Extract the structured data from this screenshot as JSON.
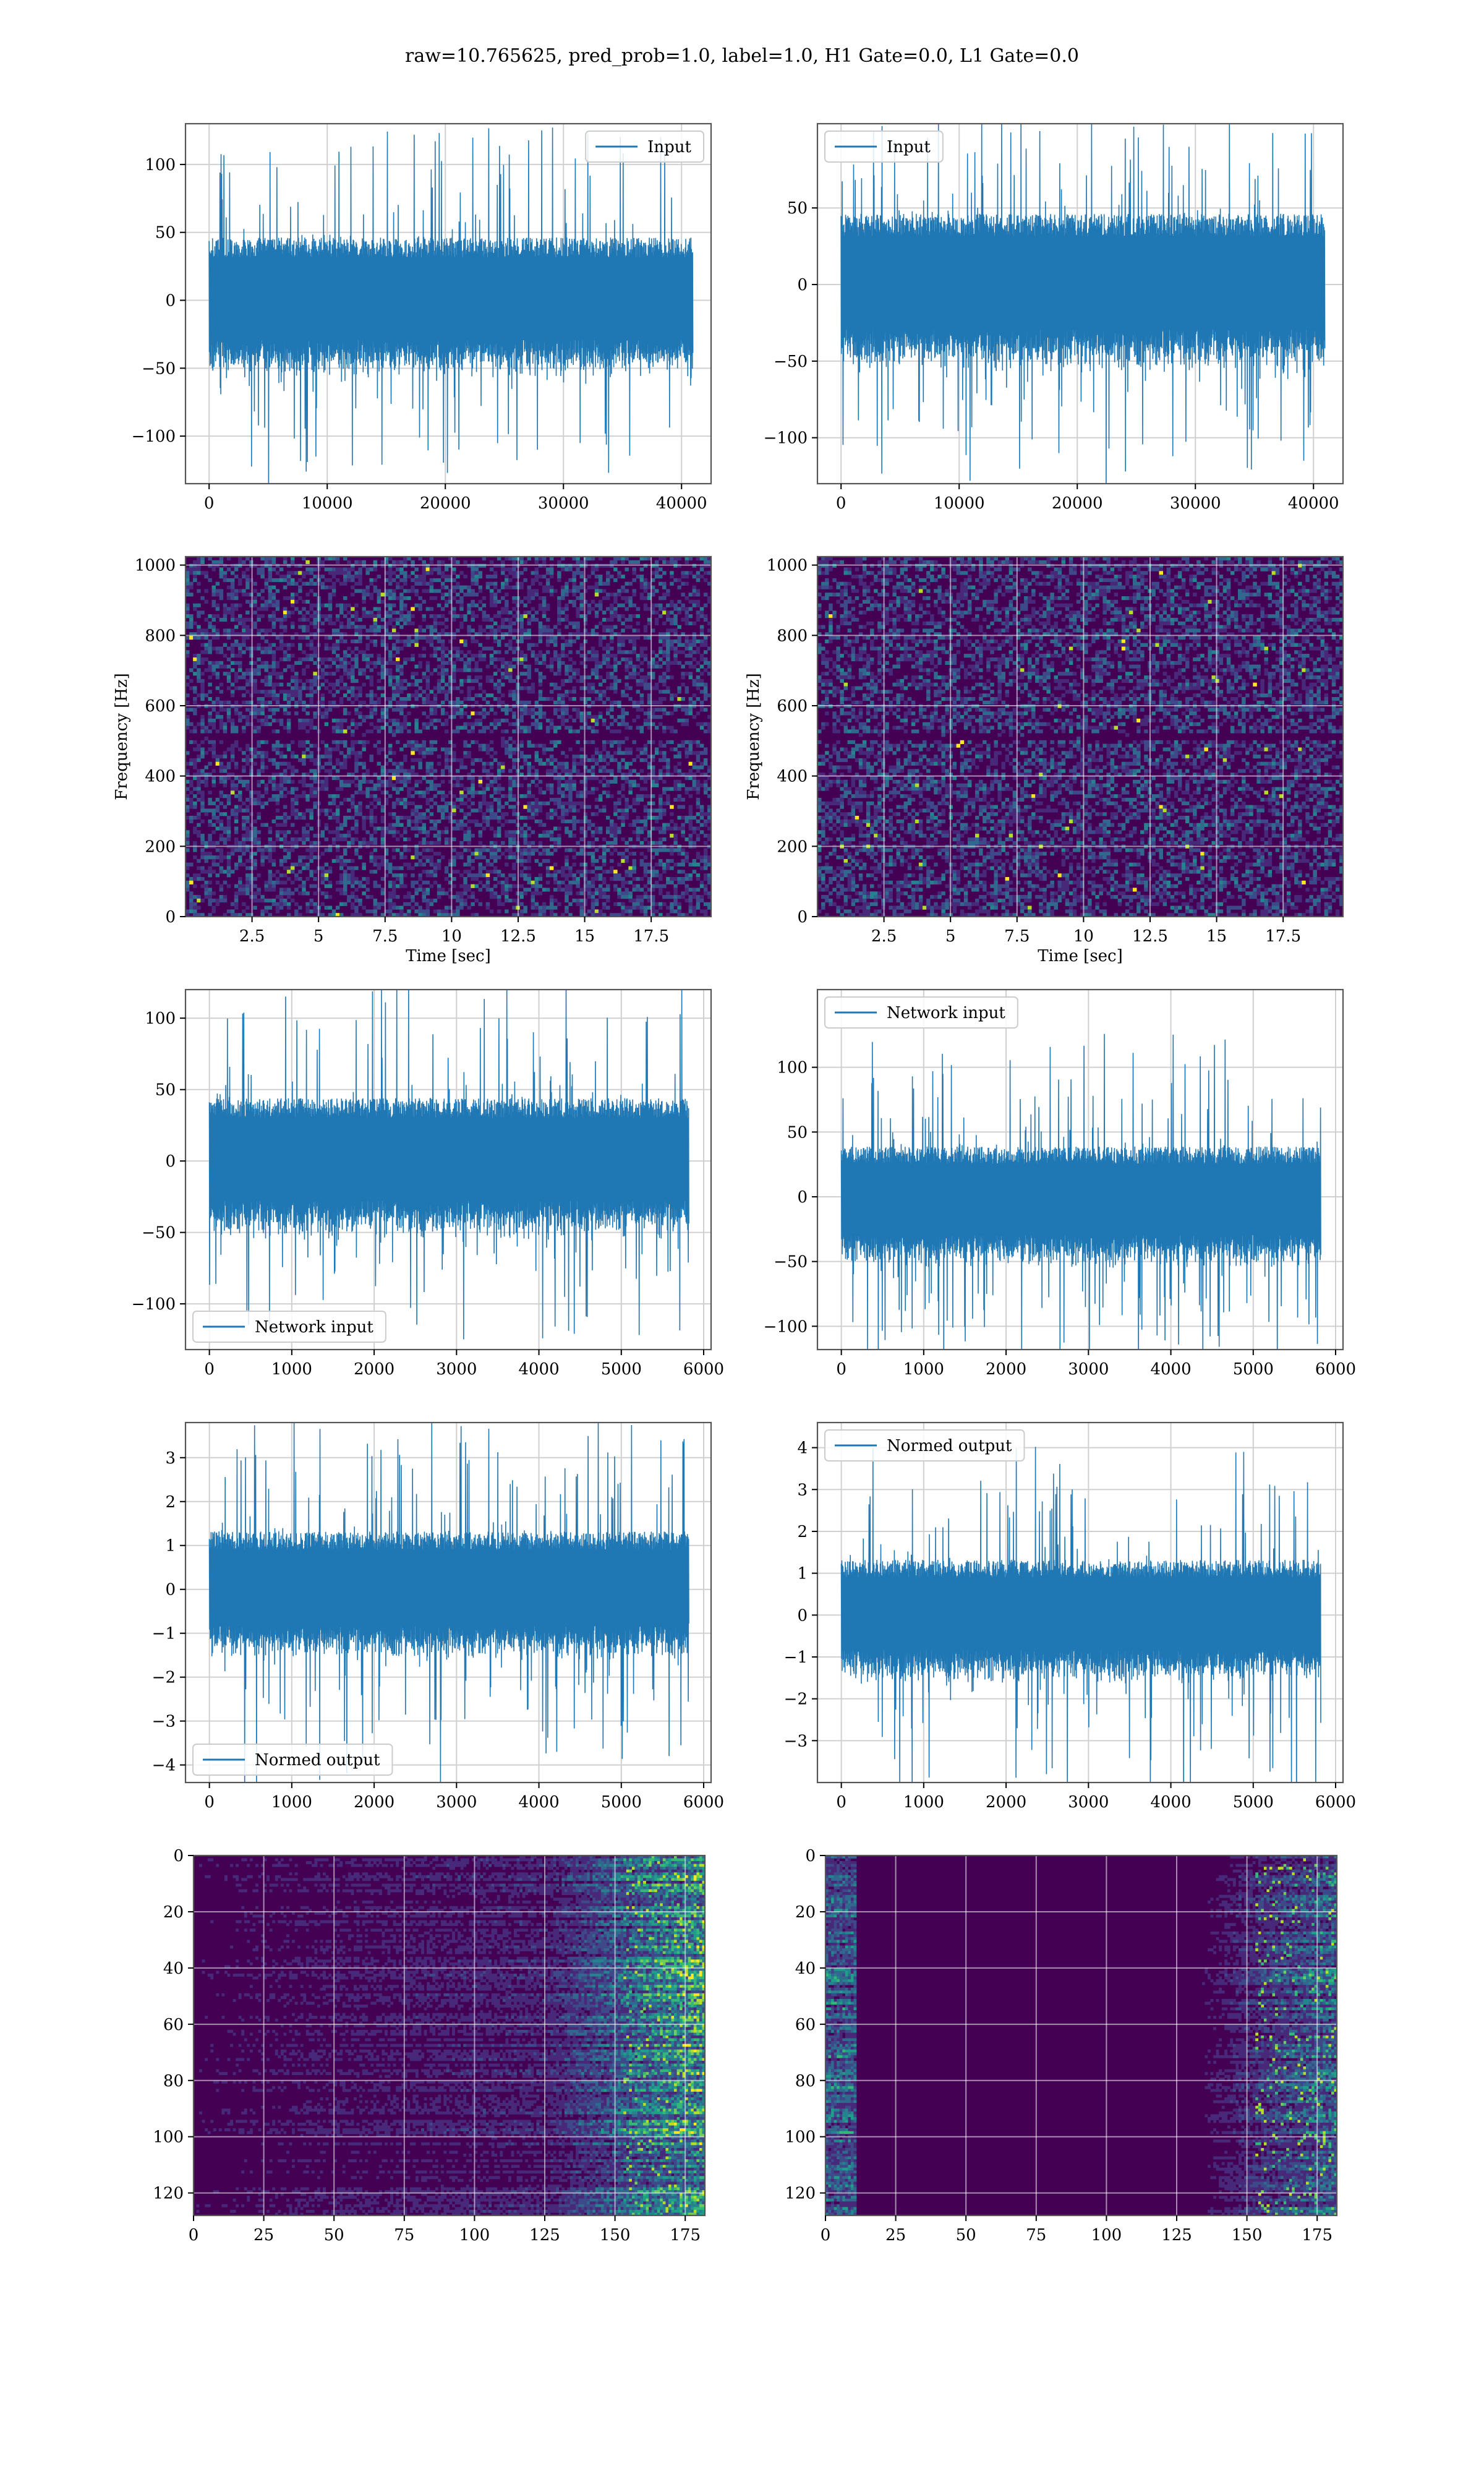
{
  "title": "raw=10.765625, pred_prob=1.0, label=1.0, H1 Gate=0.0, L1 Gate=0.0",
  "colors": {
    "line": "#1f77b4",
    "grid": "#d0d0d0",
    "frame": "#555555",
    "viridis": [
      "#440154",
      "#482878",
      "#3e4989",
      "#31688e",
      "#26828e",
      "#1f9e89",
      "#35b779",
      "#6ece58",
      "#b5de2b",
      "#fde725"
    ]
  },
  "chart_data": [
    {
      "id": "h1-input",
      "type": "line",
      "x": [
        0,
        40960
      ],
      "xlim": [
        -2000,
        42500
      ],
      "ylim": [
        -135,
        130
      ],
      "yticks": [
        -100,
        -50,
        0,
        50,
        100
      ],
      "xticks": [
        0,
        10000,
        20000,
        30000,
        40000
      ],
      "envelope": {
        "mean": 0,
        "core": 42,
        "peak": 128
      },
      "legend": {
        "label": "Input",
        "loc": "upper right"
      },
      "xlabel": "",
      "ylabel": "",
      "grid": true
    },
    {
      "id": "l1-input",
      "type": "line",
      "x": [
        0,
        40960
      ],
      "xlim": [
        -2000,
        42500
      ],
      "ylim": [
        -130,
        105
      ],
      "yticks": [
        -100,
        -50,
        0,
        50
      ],
      "xticks": [
        0,
        10000,
        20000,
        30000,
        40000
      ],
      "envelope": {
        "mean": 0,
        "core": 42,
        "peak": 118
      },
      "legend": {
        "label": "Input",
        "loc": "upper left"
      },
      "xlabel": "",
      "ylabel": "",
      "grid": true
    },
    {
      "id": "h1-spectrogram",
      "type": "heatmap",
      "xlim": [
        0,
        19.75
      ],
      "ylim": [
        0,
        1024
      ],
      "xticks": [
        2.5,
        5.0,
        7.5,
        10.0,
        12.5,
        15.0,
        17.5
      ],
      "yticks": [
        0,
        200,
        400,
        600,
        800,
        1000
      ],
      "xlabel": "Time [sec]",
      "ylabel": "Frequency [Hz]",
      "grid": true
    },
    {
      "id": "l1-spectrogram",
      "type": "heatmap",
      "xlim": [
        0,
        19.75
      ],
      "ylim": [
        0,
        1024
      ],
      "xticks": [
        2.5,
        5.0,
        7.5,
        10.0,
        12.5,
        15.0,
        17.5
      ],
      "yticks": [
        0,
        200,
        400,
        600,
        800,
        1000
      ],
      "xlabel": "Time [sec]",
      "ylabel": "Frequency [Hz]",
      "grid": true
    },
    {
      "id": "h1-network-input",
      "type": "line",
      "x": [
        0,
        5820
      ],
      "xlim": [
        -290,
        6090
      ],
      "ylim": [
        -132,
        120
      ],
      "yticks": [
        -100,
        -50,
        0,
        50,
        100
      ],
      "xticks": [
        0,
        1000,
        2000,
        3000,
        4000,
        5000,
        6000
      ],
      "envelope": {
        "mean": 0,
        "core": 40,
        "peak": 122
      },
      "legend": {
        "label": "Network input",
        "loc": "lower left"
      },
      "xlabel": "",
      "ylabel": "",
      "grid": true
    },
    {
      "id": "l1-network-input",
      "type": "line",
      "x": [
        0,
        5820
      ],
      "xlim": [
        -290,
        6090
      ],
      "ylim": [
        -118,
        160
      ],
      "yticks": [
        -100,
        -50,
        0,
        50,
        100
      ],
      "xticks": [
        0,
        1000,
        2000,
        3000,
        4000,
        5000,
        6000
      ],
      "envelope": {
        "mean": -3,
        "core": 38,
        "peak": 130
      },
      "legend": {
        "label": "Network input",
        "loc": "upper left"
      },
      "xlabel": "",
      "ylabel": "",
      "grid": true
    },
    {
      "id": "h1-normed-output",
      "type": "line",
      "x": [
        0,
        5820
      ],
      "xlim": [
        -290,
        6090
      ],
      "ylim": [
        -4.4,
        3.8
      ],
      "yticks": [
        -4,
        -3,
        -2,
        -1,
        0,
        1,
        2,
        3
      ],
      "xticks": [
        0,
        1000,
        2000,
        3000,
        4000,
        5000,
        6000
      ],
      "envelope": {
        "mean": 0,
        "core": 1.2,
        "peak": 3.9
      },
      "legend": {
        "label": "Normed output",
        "loc": "lower left"
      },
      "xlabel": "",
      "ylabel": "",
      "grid": true
    },
    {
      "id": "l1-normed-output",
      "type": "line",
      "x": [
        0,
        5820
      ],
      "xlim": [
        -290,
        6090
      ],
      "ylim": [
        -4.0,
        4.6
      ],
      "yticks": [
        -3,
        -2,
        -1,
        0,
        1,
        2,
        3,
        4
      ],
      "xticks": [
        0,
        1000,
        2000,
        3000,
        4000,
        5000,
        6000
      ],
      "envelope": {
        "mean": 0,
        "core": 1.2,
        "peak": 4.2
      },
      "legend": {
        "label": "Normed output",
        "loc": "upper left"
      },
      "xlabel": "",
      "ylabel": "",
      "grid": true
    },
    {
      "id": "h1-feature-map",
      "type": "heatmap",
      "xlim": [
        0,
        182
      ],
      "ylim": [
        128,
        0
      ],
      "xticks": [
        0,
        25,
        50,
        75,
        100,
        125,
        150,
        175
      ],
      "yticks": [
        0,
        20,
        40,
        60,
        80,
        100,
        120
      ],
      "activity": "right-heavy",
      "xlabel": "",
      "ylabel": "",
      "grid": true
    },
    {
      "id": "l1-feature-map",
      "type": "heatmap",
      "xlim": [
        0,
        182
      ],
      "ylim": [
        128,
        0
      ],
      "xticks": [
        0,
        25,
        50,
        75,
        100,
        125,
        150,
        175
      ],
      "yticks": [
        0,
        20,
        40,
        60,
        80,
        100,
        120
      ],
      "activity": "left-edge-and-right",
      "xlabel": "",
      "ylabel": "",
      "grid": true
    }
  ]
}
